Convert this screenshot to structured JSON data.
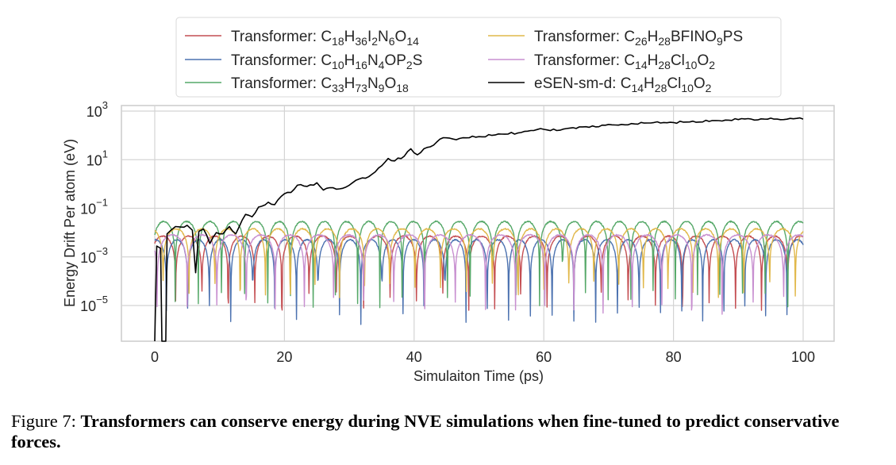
{
  "chart_data": {
    "type": "line",
    "title": "",
    "xlabel": "Simulaiton Time (ps)",
    "ylabel": "Energy Drift Per atom (eV)",
    "xlim": [
      -5,
      102
    ],
    "ylim_log10": [
      -6.5,
      3.2
    ],
    "yscale": "log",
    "grid": true,
    "x_ticks": [
      0,
      20,
      40,
      60,
      80,
      100
    ],
    "x_tick_labels": [
      "0",
      "20",
      "40",
      "60",
      "80",
      "100"
    ],
    "y_ticks_log10": [
      3,
      1,
      -1,
      -3,
      -5
    ],
    "y_tick_labels": [
      {
        "base": "10",
        "exp": "3"
      },
      {
        "base": "10",
        "exp": "1"
      },
      {
        "base": "10",
        "exp": "−1"
      },
      {
        "base": "10",
        "exp": "−3"
      },
      {
        "base": "10",
        "exp": "−5"
      }
    ],
    "legend_position": "top-center",
    "series": [
      {
        "name": "Transformer: C18H36I2N6O14",
        "label_parts": [
          [
            "Transformer: C",
            ""
          ],
          [
            "18",
            "sub"
          ],
          [
            "H",
            ""
          ],
          [
            "36",
            "sub"
          ],
          [
            "I",
            ""
          ],
          [
            "2",
            "sub"
          ],
          [
            "N",
            ""
          ],
          [
            "6",
            "sub"
          ],
          [
            "O",
            ""
          ],
          [
            "14",
            "sub"
          ]
        ],
        "color": "#c44e52",
        "baseline_log10": -2.7,
        "amp": 0.55,
        "period": 4.1,
        "phase": 0.6,
        "dip_log10": -4.4
      },
      {
        "name": "Transformer: C10H16N4OP2S",
        "label_parts": [
          [
            "Transformer: C",
            ""
          ],
          [
            "10",
            "sub"
          ],
          [
            "H",
            ""
          ],
          [
            "16",
            "sub"
          ],
          [
            "N",
            ""
          ],
          [
            "4",
            "sub"
          ],
          [
            "OP",
            ""
          ],
          [
            "2",
            "sub"
          ],
          [
            "S",
            ""
          ]
        ],
        "color": "#4c72b0",
        "baseline_log10": -2.9,
        "amp": 0.6,
        "period": 3.3,
        "phase": 1.3,
        "dip_log10": -5.0
      },
      {
        "name": "Transformer: C33H73N9O18",
        "label_parts": [
          [
            "Transformer: C",
            ""
          ],
          [
            "33",
            "sub"
          ],
          [
            "H",
            ""
          ],
          [
            "73",
            "sub"
          ],
          [
            "N",
            ""
          ],
          [
            "9",
            "sub"
          ],
          [
            "O",
            ""
          ],
          [
            "18",
            "sub"
          ]
        ],
        "color": "#55a868",
        "baseline_log10": -2.1,
        "amp": 0.55,
        "period": 3.5,
        "phase": 0.2,
        "dip_log10": -4.3
      },
      {
        "name": "Transformer: C26H28BFINO9PS",
        "label_parts": [
          [
            "Transformer: C",
            ""
          ],
          [
            "26",
            "sub"
          ],
          [
            "H",
            ""
          ],
          [
            "28",
            "sub"
          ],
          [
            "BFINO",
            ""
          ],
          [
            "9",
            "sub"
          ],
          [
            "PS",
            ""
          ]
        ],
        "color": "#dd8452",
        "stroke_override": "#e1b84a",
        "baseline_log10": -2.35,
        "amp": 0.5,
        "period": 3.9,
        "phase": 2.1,
        "dip_log10": -3.9
      },
      {
        "name": "Transformer: C14H28Cl10O2",
        "label_parts": [
          [
            "Transformer: C",
            ""
          ],
          [
            "14",
            "sub"
          ],
          [
            "H",
            ""
          ],
          [
            "28",
            "sub"
          ],
          [
            "Cl",
            ""
          ],
          [
            "10",
            "sub"
          ],
          [
            "O",
            ""
          ],
          [
            "2",
            "sub"
          ]
        ],
        "color": "#c88fd0",
        "baseline_log10": -2.6,
        "amp": 0.5,
        "period": 4.6,
        "phase": 3.0,
        "dip_log10": -4.6
      },
      {
        "name": "eSEN-sm-d: C14H28Cl10O2",
        "label_parts": [
          [
            "eSEN-sm-d: C",
            ""
          ],
          [
            "14",
            "sub"
          ],
          [
            "H",
            ""
          ],
          [
            "28",
            "sub"
          ],
          [
            "Cl",
            ""
          ],
          [
            "10",
            "sub"
          ],
          [
            "O",
            ""
          ],
          [
            "2",
            "sub"
          ]
        ],
        "color": "#000000",
        "points": [
          [
            0,
            -6.5
          ],
          [
            0.3,
            -1.4
          ],
          [
            0.9,
            -1.5
          ],
          [
            1.1,
            -6.5
          ],
          [
            1.7,
            -6.5
          ],
          [
            1.9,
            -0.9
          ],
          [
            2.5,
            -0.75
          ],
          [
            3.2,
            -0.6
          ],
          [
            4,
            -0.62
          ],
          [
            5,
            -0.55
          ],
          [
            5.8,
            -0.75
          ],
          [
            6.3,
            -2.5
          ],
          [
            6.8,
            -0.8
          ],
          [
            7.5,
            -0.7
          ],
          [
            8.5,
            -1.3
          ],
          [
            9.5,
            -0.85
          ],
          [
            10.5,
            -0.9
          ],
          [
            11.5,
            -0.6
          ],
          [
            12.5,
            -0.9
          ],
          [
            14,
            -0.1
          ],
          [
            15,
            -0.2
          ],
          [
            16,
            0.2
          ],
          [
            17.5,
            0.4
          ],
          [
            18.5,
            0.3
          ],
          [
            20,
            0.75
          ],
          [
            21,
            0.8
          ],
          [
            22,
            1.1
          ],
          [
            23.5,
            1.05
          ],
          [
            25,
            1.2
          ],
          [
            26,
            0.9
          ],
          [
            27,
            1.0
          ],
          [
            28.5,
            0.95
          ],
          [
            30,
            1.1
          ],
          [
            31,
            1.3
          ],
          [
            32,
            1.4
          ],
          [
            33,
            1.45
          ],
          [
            34,
            1.65
          ],
          [
            35,
            1.9
          ],
          [
            36,
            2.2
          ],
          [
            37,
            2.1
          ],
          [
            38.5,
            2.3
          ],
          [
            39.5,
            2.6
          ],
          [
            40.5,
            2.35
          ],
          [
            41.5,
            2.6
          ],
          [
            43,
            2.75
          ],
          [
            44,
            3.0
          ],
          [
            45,
            3.05
          ],
          [
            46,
            3.0
          ],
          [
            48,
            3.05
          ],
          [
            50,
            3.1
          ],
          [
            52,
            3.15
          ],
          [
            54,
            3.2
          ],
          [
            56,
            3.25
          ],
          [
            58,
            3.35
          ],
          [
            60,
            3.4
          ],
          [
            62,
            3.35
          ],
          [
            64,
            3.45
          ],
          [
            66,
            3.5
          ],
          [
            68,
            3.5
          ],
          [
            70,
            3.6
          ],
          [
            72,
            3.6
          ],
          [
            74,
            3.62
          ],
          [
            76,
            3.66
          ],
          [
            78,
            3.66
          ],
          [
            80,
            3.68
          ],
          [
            82,
            3.7
          ],
          [
            84,
            3.7
          ],
          [
            86,
            3.76
          ],
          [
            88,
            3.78
          ],
          [
            90,
            3.8
          ],
          [
            92,
            3.82
          ],
          [
            94,
            3.82
          ],
          [
            96,
            3.82
          ],
          [
            97,
            3.8
          ],
          [
            98,
            3.85
          ],
          [
            99,
            3.85
          ],
          [
            100,
            3.82
          ]
        ],
        "points_note": "values in log10(eV) scaled so that 10^3 ≈ log 2.65 (line stays just under 10^3); y = log10 value"
      }
    ]
  },
  "caption": {
    "label": "Figure 7:",
    "text": "Transformers can conserve energy during NVE simulations when fine-tuned to predict conservative forces."
  }
}
